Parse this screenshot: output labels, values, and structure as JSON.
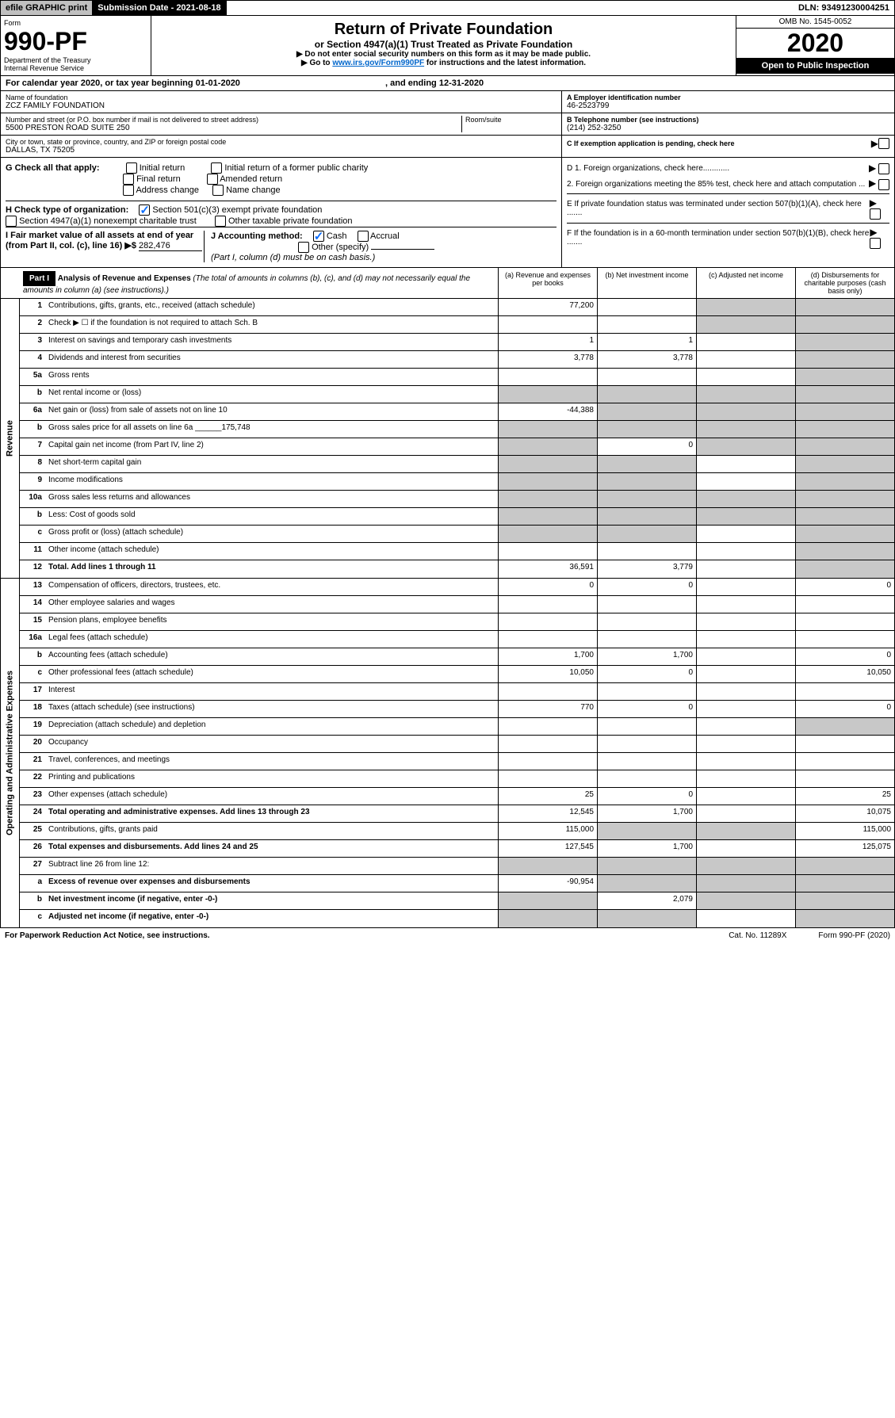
{
  "topbar": {
    "efile": "efile GRAPHIC print",
    "submission": "Submission Date - 2021-08-18",
    "dln": "DLN: 93491230004251"
  },
  "header": {
    "form_label": "Form",
    "form_no": "990-PF",
    "dept": "Department of the Treasury",
    "irs": "Internal Revenue Service",
    "title": "Return of Private Foundation",
    "subtitle": "or Section 4947(a)(1) Trust Treated as Private Foundation",
    "instr1": "▶ Do not enter social security numbers on this form as it may be made public.",
    "instr2_pre": "▶ Go to ",
    "instr2_link": "www.irs.gov/Form990PF",
    "instr2_post": " for instructions and the latest information.",
    "omb": "OMB No. 1545-0052",
    "year": "2020",
    "open": "Open to Public Inspection"
  },
  "calyear": {
    "text_pre": "For calendar year 2020, or tax year beginning ",
    "begin": "01-01-2020",
    "mid": " , and ending ",
    "end": "12-31-2020"
  },
  "info": {
    "name_label": "Name of foundation",
    "name": "ZCZ FAMILY FOUNDATION",
    "addr_label": "Number and street (or P.O. box number if mail is not delivered to street address)",
    "addr": "5500 PRESTON ROAD SUITE 250",
    "room_label": "Room/suite",
    "city_label": "City or town, state or province, country, and ZIP or foreign postal code",
    "city": "DALLAS, TX  75205",
    "ein_label": "A Employer identification number",
    "ein": "46-2523799",
    "tel_label": "B Telephone number (see instructions)",
    "tel": "(214) 252-3250",
    "c_label": "C If exemption application is pending, check here"
  },
  "checks": {
    "g_label": "G Check all that apply:",
    "g_items": [
      "Initial return",
      "Initial return of a former public charity",
      "Final return",
      "Amended return",
      "Address change",
      "Name change"
    ],
    "h_label": "H Check type of organization:",
    "h_501c3": "Section 501(c)(3) exempt private foundation",
    "h_4947": "Section 4947(a)(1) nonexempt charitable trust",
    "h_other": "Other taxable private foundation",
    "i_label": "I Fair market value of all assets at end of year (from Part II, col. (c), line 16) ▶$",
    "i_val": "282,476",
    "j_label": "J Accounting method:",
    "j_cash": "Cash",
    "j_accrual": "Accrual",
    "j_other": "Other (specify)",
    "j_note": "(Part I, column (d) must be on cash basis.)",
    "d1": "D 1. Foreign organizations, check here............",
    "d2": "2. Foreign organizations meeting the 85% test, check here and attach computation ...",
    "e": "E  If private foundation status was terminated under section 507(b)(1)(A), check here .......",
    "f": "F  If the foundation is in a 60-month termination under section 507(b)(1)(B), check here .......",
    "arrow": "▶"
  },
  "part1": {
    "label": "Part I",
    "title": "Analysis of Revenue and Expenses",
    "note": "(The total of amounts in columns (b), (c), and (d) may not necessarily equal the amounts in column (a) (see instructions).)",
    "cols": {
      "a": "(a)  Revenue and expenses per books",
      "b": "(b)  Net investment income",
      "c": "(c)  Adjusted net income",
      "d": "(d)  Disbursements for charitable purposes (cash basis only)"
    }
  },
  "sections": {
    "revenue": "Revenue",
    "expenses": "Operating and Administrative Expenses"
  },
  "rows": [
    {
      "ln": "1",
      "desc": "Contributions, gifts, grants, etc., received (attach schedule)",
      "a": "77,200",
      "b": "",
      "c": "shade",
      "d": "shade"
    },
    {
      "ln": "2",
      "desc": "Check ▶ ☐ if the foundation is not required to attach Sch. B",
      "a": "",
      "b": "",
      "c": "shade",
      "d": "shade",
      "nobold": true
    },
    {
      "ln": "3",
      "desc": "Interest on savings and temporary cash investments",
      "a": "1",
      "b": "1",
      "c": "",
      "d": "shade"
    },
    {
      "ln": "4",
      "desc": "Dividends and interest from securities",
      "a": "3,778",
      "b": "3,778",
      "c": "",
      "d": "shade"
    },
    {
      "ln": "5a",
      "desc": "Gross rents",
      "a": "",
      "b": "",
      "c": "",
      "d": "shade"
    },
    {
      "ln": "b",
      "desc": "Net rental income or (loss)",
      "a": "shade",
      "b": "shade",
      "c": "shade",
      "d": "shade"
    },
    {
      "ln": "6a",
      "desc": "Net gain or (loss) from sale of assets not on line 10",
      "a": "-44,388",
      "b": "shade",
      "c": "shade",
      "d": "shade"
    },
    {
      "ln": "b",
      "desc": "Gross sales price for all assets on line 6a ______175,748",
      "a": "shade",
      "b": "shade",
      "c": "shade",
      "d": "shade"
    },
    {
      "ln": "7",
      "desc": "Capital gain net income (from Part IV, line 2)",
      "a": "shade",
      "b": "0",
      "c": "shade",
      "d": "shade"
    },
    {
      "ln": "8",
      "desc": "Net short-term capital gain",
      "a": "shade",
      "b": "shade",
      "c": "",
      "d": "shade"
    },
    {
      "ln": "9",
      "desc": "Income modifications",
      "a": "shade",
      "b": "shade",
      "c": "",
      "d": "shade"
    },
    {
      "ln": "10a",
      "desc": "Gross sales less returns and allowances",
      "a": "shade",
      "b": "shade",
      "c": "shade",
      "d": "shade"
    },
    {
      "ln": "b",
      "desc": "Less: Cost of goods sold",
      "a": "shade",
      "b": "shade",
      "c": "shade",
      "d": "shade"
    },
    {
      "ln": "c",
      "desc": "Gross profit or (loss) (attach schedule)",
      "a": "shade",
      "b": "shade",
      "c": "",
      "d": "shade"
    },
    {
      "ln": "11",
      "desc": "Other income (attach schedule)",
      "a": "",
      "b": "",
      "c": "",
      "d": "shade"
    },
    {
      "ln": "12",
      "desc": "Total. Add lines 1 through 11",
      "a": "36,591",
      "b": "3,779",
      "c": "",
      "d": "shade",
      "bold": true
    }
  ],
  "erows": [
    {
      "ln": "13",
      "desc": "Compensation of officers, directors, trustees, etc.",
      "a": "0",
      "b": "0",
      "c": "",
      "d": "0"
    },
    {
      "ln": "14",
      "desc": "Other employee salaries and wages",
      "a": "",
      "b": "",
      "c": "",
      "d": ""
    },
    {
      "ln": "15",
      "desc": "Pension plans, employee benefits",
      "a": "",
      "b": "",
      "c": "",
      "d": ""
    },
    {
      "ln": "16a",
      "desc": "Legal fees (attach schedule)",
      "a": "",
      "b": "",
      "c": "",
      "d": ""
    },
    {
      "ln": "b",
      "desc": "Accounting fees (attach schedule)",
      "a": "1,700",
      "b": "1,700",
      "c": "",
      "d": "0"
    },
    {
      "ln": "c",
      "desc": "Other professional fees (attach schedule)",
      "a": "10,050",
      "b": "0",
      "c": "",
      "d": "10,050"
    },
    {
      "ln": "17",
      "desc": "Interest",
      "a": "",
      "b": "",
      "c": "",
      "d": ""
    },
    {
      "ln": "18",
      "desc": "Taxes (attach schedule) (see instructions)",
      "a": "770",
      "b": "0",
      "c": "",
      "d": "0"
    },
    {
      "ln": "19",
      "desc": "Depreciation (attach schedule) and depletion",
      "a": "",
      "b": "",
      "c": "",
      "d": "shade"
    },
    {
      "ln": "20",
      "desc": "Occupancy",
      "a": "",
      "b": "",
      "c": "",
      "d": ""
    },
    {
      "ln": "21",
      "desc": "Travel, conferences, and meetings",
      "a": "",
      "b": "",
      "c": "",
      "d": ""
    },
    {
      "ln": "22",
      "desc": "Printing and publications",
      "a": "",
      "b": "",
      "c": "",
      "d": ""
    },
    {
      "ln": "23",
      "desc": "Other expenses (attach schedule)",
      "a": "25",
      "b": "0",
      "c": "",
      "d": "25"
    },
    {
      "ln": "24",
      "desc": "Total operating and administrative expenses. Add lines 13 through 23",
      "a": "12,545",
      "b": "1,700",
      "c": "",
      "d": "10,075",
      "bold": true
    },
    {
      "ln": "25",
      "desc": "Contributions, gifts, grants paid",
      "a": "115,000",
      "b": "shade",
      "c": "shade",
      "d": "115,000"
    },
    {
      "ln": "26",
      "desc": "Total expenses and disbursements. Add lines 24 and 25",
      "a": "127,545",
      "b": "1,700",
      "c": "",
      "d": "125,075",
      "bold": true
    },
    {
      "ln": "27",
      "desc": "Subtract line 26 from line 12:",
      "a": "shade",
      "b": "shade",
      "c": "shade",
      "d": "shade"
    },
    {
      "ln": "a",
      "desc": "Excess of revenue over expenses and disbursements",
      "a": "-90,954",
      "b": "shade",
      "c": "shade",
      "d": "shade",
      "bold": true
    },
    {
      "ln": "b",
      "desc": "Net investment income (if negative, enter -0-)",
      "a": "shade",
      "b": "2,079",
      "c": "shade",
      "d": "shade",
      "bold": true
    },
    {
      "ln": "c",
      "desc": "Adjusted net income (if negative, enter -0-)",
      "a": "shade",
      "b": "shade",
      "c": "",
      "d": "shade",
      "bold": true
    }
  ],
  "footer": {
    "paperwork": "For Paperwork Reduction Act Notice, see instructions.",
    "cat": "Cat. No. 11289X",
    "form": "Form 990-PF (2020)"
  },
  "colors": {
    "shade": "#c8c8c8",
    "link": "#0066cc",
    "check": "#0d6efd"
  }
}
